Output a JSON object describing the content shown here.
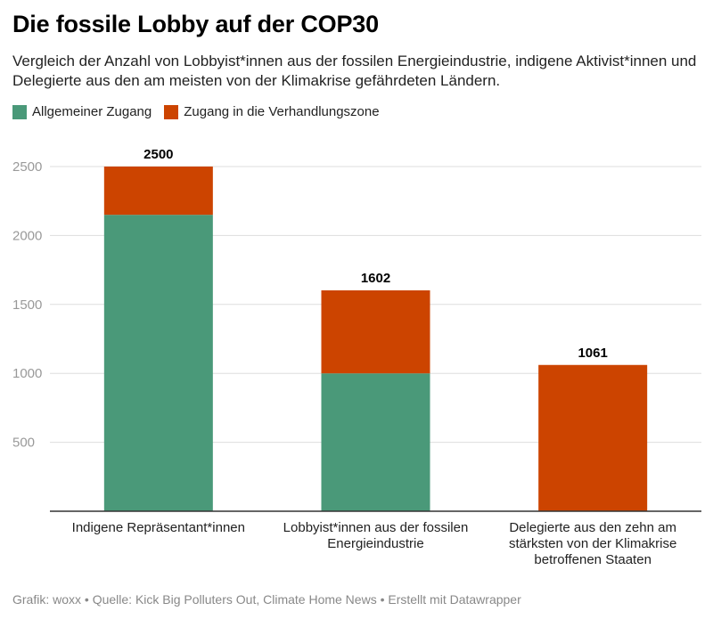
{
  "title": "Die fossile Lobby auf der COP30",
  "subtitle": "Vergleich der Anzahl von Lobbyist*innen aus der fossilen Energieindustrie, indigene Aktivist*innen und Delegierte aus den am meisten von der Klimakrise gefährdeten Ländern.",
  "footer": "Grafik: woxx • Quelle: Kick Big Polluters Out, Climate Home News • Erstellt mit Datawrapper",
  "colors": {
    "general": "#4a9979",
    "negotiation": "#cc4400"
  },
  "chart_data": {
    "type": "bar",
    "stacked": true,
    "categories": [
      "Indigene Repräsentant*innen",
      "Lobbyist*innen aus der fossilen Energieindustrie",
      "Delegierte aus den zehn am stärksten von der Klimakrise betroffenen Staaten"
    ],
    "category_lines": [
      [
        "Indigene Repräsentant*innen"
      ],
      [
        "Lobbyist*innen aus der fossilen",
        "Energieindustrie"
      ],
      [
        "Delegierte aus den zehn am",
        "stärksten von der Klimakrise",
        "betroffenen Staaten"
      ]
    ],
    "series": [
      {
        "name": "Allgemeiner Zugang",
        "values": [
          2150,
          1000,
          0
        ]
      },
      {
        "name": "Zugang in die Verhandlungszone",
        "values": [
          350,
          602,
          1061
        ]
      }
    ],
    "totals": [
      2500,
      1602,
      1061
    ],
    "yticks": [
      500,
      1000,
      1500,
      2000,
      2500
    ],
    "ylim": [
      0,
      2500
    ],
    "grid": true,
    "legend": "top-left"
  }
}
